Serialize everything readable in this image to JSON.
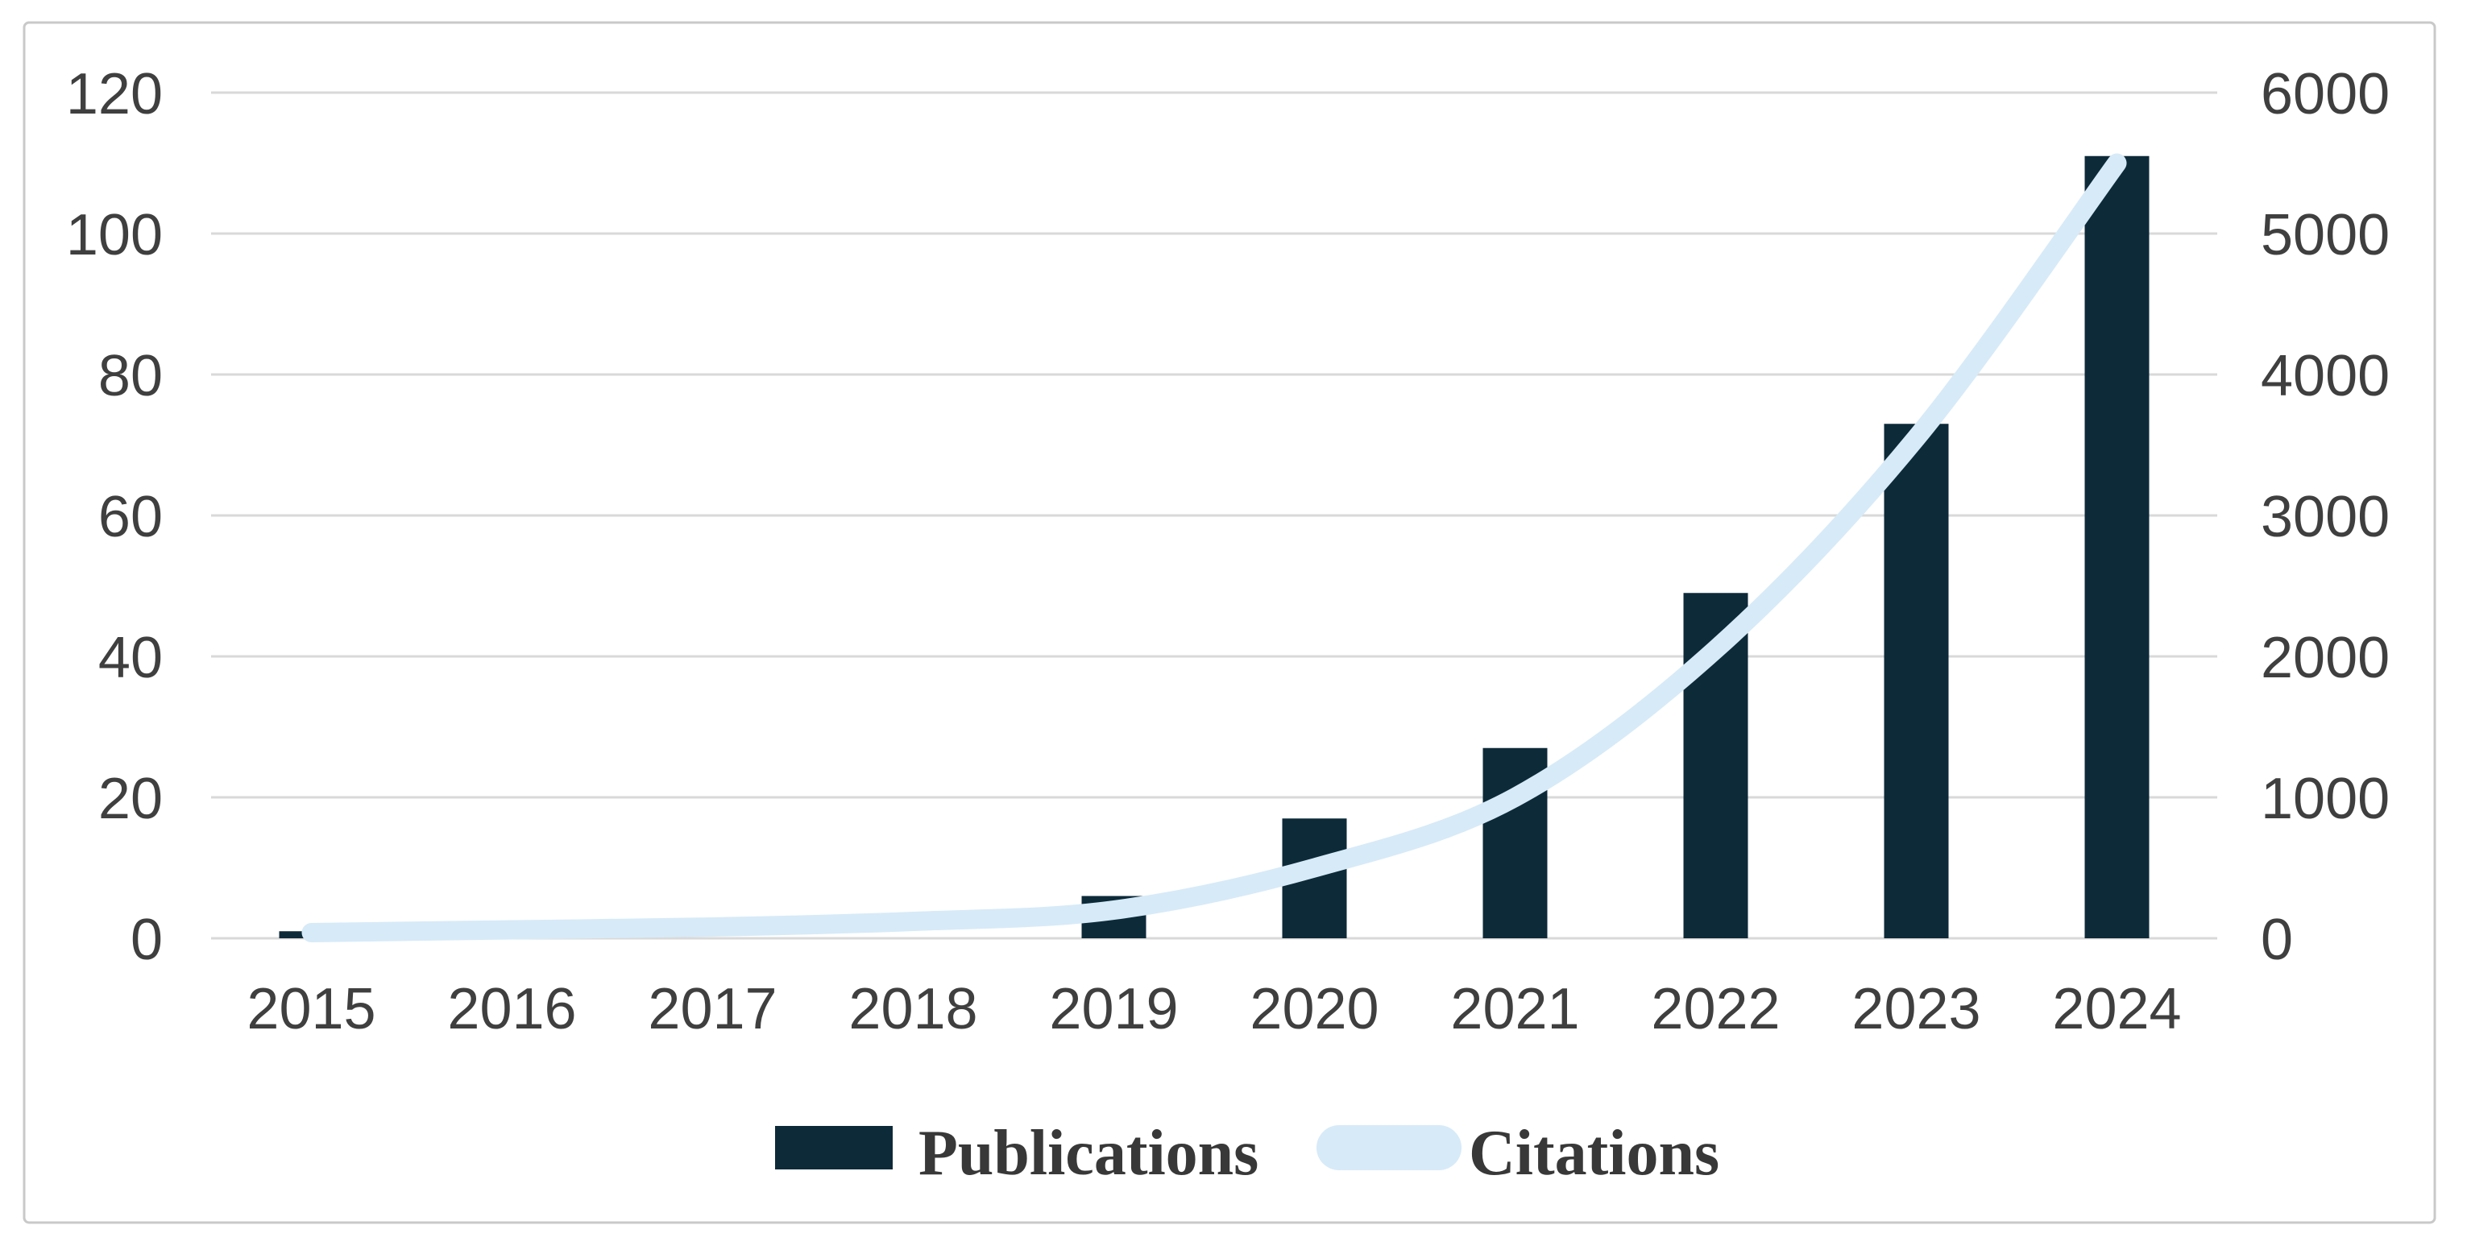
{
  "chart_data": {
    "type": "combo-bar-line",
    "title": "",
    "categories": [
      "2015",
      "2016",
      "2017",
      "2018",
      "2019",
      "2020",
      "2021",
      "2022",
      "2023",
      "2024"
    ],
    "series": [
      {
        "name": "Publications",
        "type": "bar",
        "axis": "left",
        "color": "#0d2a39",
        "values": [
          1,
          0,
          0,
          0,
          6,
          17,
          27,
          49,
          73,
          111
        ]
      },
      {
        "name": "Citations",
        "type": "line",
        "axis": "right",
        "color": "#d7eaf8",
        "values": [
          40,
          60,
          80,
          120,
          200,
          500,
          1000,
          2050,
          3550,
          5500
        ]
      }
    ],
    "left_axis": {
      "min": 0,
      "max": 120,
      "step": 20,
      "tick_labels": [
        "0",
        "20",
        "40",
        "60",
        "80",
        "100",
        "120"
      ]
    },
    "right_axis": {
      "min": 0,
      "max": 6000,
      "step": 1000,
      "tick_labels": [
        "0",
        "1000",
        "2000",
        "3000",
        "4000",
        "5000",
        "6000"
      ]
    },
    "grid": true,
    "legend_position": "bottom",
    "gridline_color": "#d9d9d9",
    "tick_label_color": "#3f3f3f",
    "frame_border_color": "#c9c9c9",
    "background_color": "#ffffff"
  },
  "legend": {
    "publications_label": "Publications",
    "citations_label": "Citations"
  }
}
